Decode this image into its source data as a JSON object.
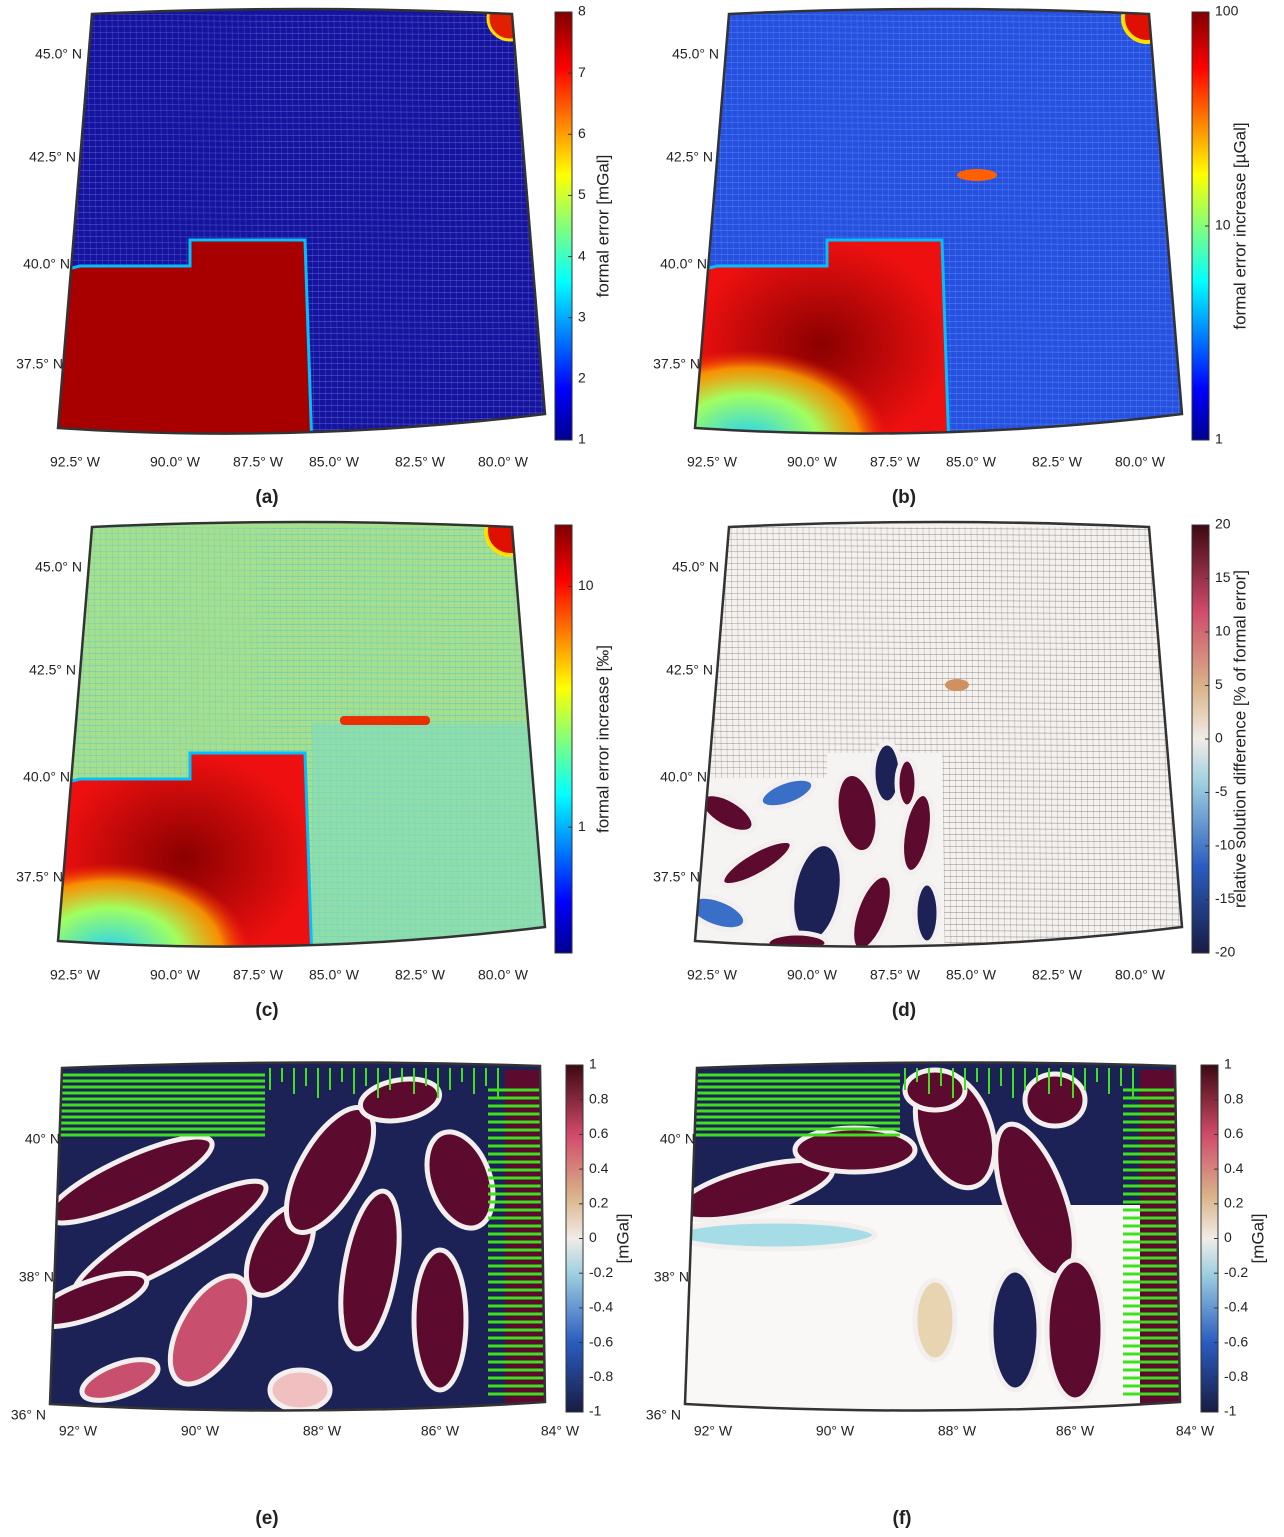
{
  "panels": [
    {
      "caption": "(a)",
      "lat_labels": [
        "45.0° N",
        "42.5° N",
        "40.0° N",
        "37.5° N"
      ],
      "lon_labels": [
        "92.5° W",
        "90.0° W",
        "87.5° W",
        "85.0° W",
        "82.5° W",
        "80.0° W"
      ],
      "colorbar": {
        "label": "formal error [mGal]",
        "colormap": "jet",
        "log": false,
        "lim": [
          1,
          8
        ],
        "ticks": [
          1,
          2,
          3,
          4,
          5,
          6,
          7,
          8
        ]
      }
    },
    {
      "caption": "(b)",
      "lat_labels": [
        "45.0° N",
        "42.5° N",
        "40.0° N",
        "37.5° N"
      ],
      "lon_labels": [
        "92.5° W",
        "90.0° W",
        "87.5° W",
        "85.0° W",
        "82.5° W",
        "80.0° W"
      ],
      "colorbar": {
        "label": "formal error increase [µGal]",
        "colormap": "jet",
        "log": true,
        "lim": [
          1,
          100
        ],
        "ticks": [
          1,
          10,
          100
        ]
      }
    },
    {
      "caption": "(c)",
      "lat_labels": [
        "45.0° N",
        "42.5° N",
        "40.0° N",
        "37.5° N"
      ],
      "lon_labels": [
        "92.5° W",
        "90.0° W",
        "87.5° W",
        "85.0° W",
        "82.5° W",
        "80.0° W"
      ],
      "colorbar": {
        "label": "formal error increase [‰]",
        "colormap": "jet",
        "log": true,
        "lim": [
          0.3,
          18
        ],
        "ticks": [
          1,
          10
        ]
      }
    },
    {
      "caption": "(d)",
      "lat_labels": [
        "45.0° N",
        "42.5° N",
        "40.0° N",
        "37.5° N"
      ],
      "lon_labels": [
        "92.5° W",
        "90.0° W",
        "87.5° W",
        "85.0° W",
        "82.5° W",
        "80.0° W"
      ],
      "colorbar": {
        "label": "relative solution difference [% of formal error]",
        "colormap": "diverging",
        "log": false,
        "lim": [
          -20,
          20
        ],
        "ticks": [
          -20,
          -15,
          -10,
          -5,
          0,
          5,
          10,
          15,
          20
        ]
      }
    },
    {
      "caption": "(e)",
      "lat_labels": [
        "40° N",
        "38° N",
        "36° N"
      ],
      "lon_labels": [
        "92° W",
        "90° W",
        "88° W",
        "86° W",
        "84° W"
      ],
      "colorbar": {
        "label": "[mGal]",
        "colormap": "diverging",
        "log": false,
        "lim": [
          -1,
          1
        ],
        "ticks": [
          -1,
          -0.8,
          -0.6,
          -0.4,
          -0.2,
          0,
          0.2,
          0.4,
          0.6,
          0.8,
          1
        ]
      }
    },
    {
      "caption": "(f)",
      "lat_labels": [
        "40° N",
        "38° N",
        "36° N"
      ],
      "lon_labels": [
        "92° W",
        "90° W",
        "88° W",
        "86° W",
        "84° W"
      ],
      "colorbar": {
        "label": "[mGal]",
        "colormap": "diverging",
        "log": false,
        "lim": [
          -1,
          1
        ],
        "ticks": [
          -1,
          -0.8,
          -0.6,
          -0.4,
          -0.2,
          0,
          0.2,
          0.4,
          0.6,
          0.8,
          1
        ]
      }
    }
  ]
}
